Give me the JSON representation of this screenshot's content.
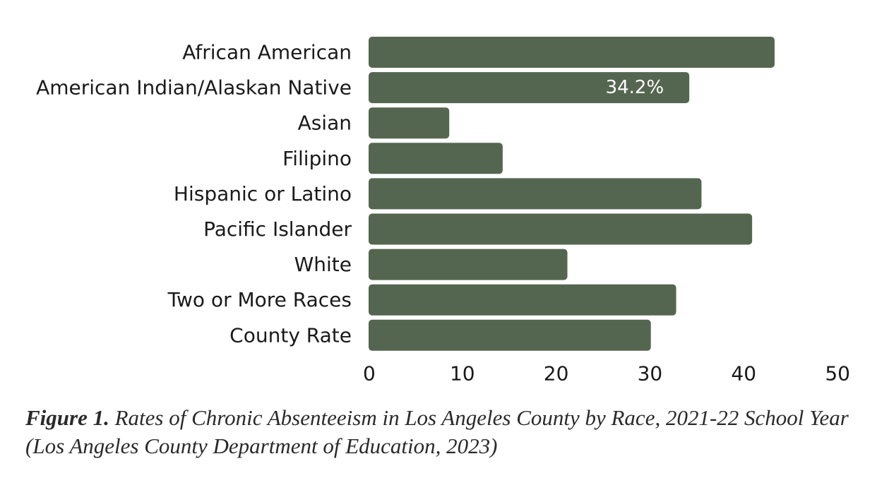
{
  "chart_data": {
    "type": "bar",
    "orientation": "horizontal",
    "categories": [
      "African American",
      "American Indian/Alaskan Native",
      "Asian",
      "Filipino",
      "Hispanic or Latino",
      "Pacific Islander",
      "White",
      "Two or More Races",
      "County Rate"
    ],
    "values": [
      43.3,
      34.2,
      8.6,
      14.3,
      35.5,
      40.9,
      21.2,
      32.8,
      30.1
    ],
    "data_labels": [
      {
        "category": "American Indian/Alaskan Native",
        "text": "34.2%"
      }
    ],
    "xlim": [
      0,
      50
    ],
    "xticks": [
      "0",
      "10",
      "20",
      "30",
      "40",
      "50"
    ],
    "grid": false,
    "bar_color": "#556650"
  },
  "caption": {
    "figure_label": "Figure 1.",
    "text": "Rates of Chronic Absenteeism in Los Angeles County by Race, 2021-22 School Year (Los Angeles County Department of Education, 2023)"
  }
}
